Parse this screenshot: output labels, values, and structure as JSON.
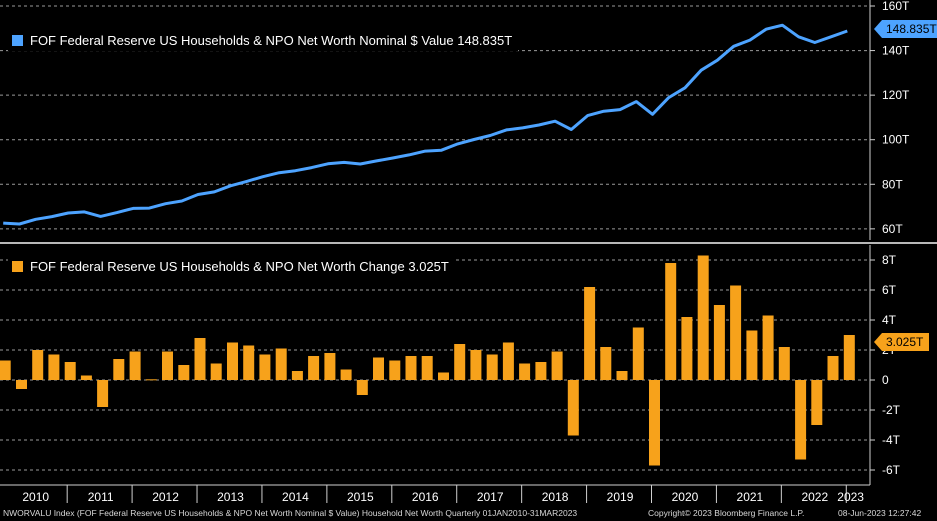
{
  "chart_data": [
    {
      "type": "line",
      "title": "FOF Federal Reserve US Households & NPO Net Worth Nominal $ Value",
      "last_value_label": "148.835T",
      "legend_text": "FOF Federal Reserve US Households & NPO Net Worth Nominal $ Value 148.835T",
      "color": "#4da3ff",
      "ylim": [
        55,
        160
      ],
      "yticks": [
        60,
        80,
        100,
        120,
        140,
        160
      ],
      "ytick_labels": [
        "60T",
        "80T",
        "100T",
        "120T",
        "140T",
        "160T"
      ],
      "x": [
        2010.0,
        2010.25,
        2010.5,
        2010.75,
        2011.0,
        2011.25,
        2011.5,
        2011.75,
        2012.0,
        2012.25,
        2012.5,
        2012.75,
        2013.0,
        2013.25,
        2013.5,
        2013.75,
        2014.0,
        2014.25,
        2014.5,
        2014.75,
        2015.0,
        2015.25,
        2015.5,
        2015.75,
        2016.0,
        2016.25,
        2016.5,
        2016.75,
        2017.0,
        2017.25,
        2017.5,
        2017.75,
        2018.0,
        2018.25,
        2018.5,
        2018.75,
        2019.0,
        2019.25,
        2019.5,
        2019.75,
        2020.0,
        2020.25,
        2020.5,
        2020.75,
        2021.0,
        2021.25,
        2021.5,
        2021.75,
        2022.0,
        2022.25,
        2022.5,
        2022.75,
        2023.0
      ],
      "values": [
        62.6,
        62.2,
        64.3,
        65.5,
        67.1,
        67.6,
        65.6,
        67.3,
        69.2,
        69.3,
        71.3,
        72.5,
        75.4,
        76.6,
        79.3,
        81.3,
        83.4,
        85.2,
        86.1,
        87.5,
        89.2,
        89.8,
        89.1,
        90.5,
        91.8,
        93.2,
        94.9,
        95.3,
        98.1,
        100.1,
        101.9,
        104.4,
        105.3,
        106.6,
        108.3,
        104.6,
        110.8,
        112.8,
        113.5,
        117.1,
        111.4,
        118.9,
        123.3,
        131.2,
        135.7,
        141.9,
        144.7,
        149.6,
        151.4,
        146.2,
        143.6,
        146.2,
        148.8
      ]
    },
    {
      "type": "bar",
      "title": "FOF Federal Reserve US Households & NPO Net Worth Change",
      "last_value_label": "3.025T",
      "legend_text": "FOF Federal Reserve US Households & NPO Net Worth Change 3.025T",
      "color": "#f7a21b",
      "ylim": [
        -7,
        9
      ],
      "yticks": [
        -6,
        -4,
        -2,
        0,
        2,
        4,
        6,
        8
      ],
      "ytick_labels": [
        "-6T",
        "-4T",
        "-2T",
        "0",
        "2T",
        "4T",
        "6T",
        "8T"
      ],
      "x": [
        2010.0,
        2010.25,
        2010.5,
        2010.75,
        2011.0,
        2011.25,
        2011.5,
        2011.75,
        2012.0,
        2012.25,
        2012.5,
        2012.75,
        2013.0,
        2013.25,
        2013.5,
        2013.75,
        2014.0,
        2014.25,
        2014.5,
        2014.75,
        2015.0,
        2015.25,
        2015.5,
        2015.75,
        2016.0,
        2016.25,
        2016.5,
        2016.75,
        2017.0,
        2017.25,
        2017.5,
        2017.75,
        2018.0,
        2018.25,
        2018.5,
        2018.75,
        2019.0,
        2019.25,
        2019.5,
        2019.75,
        2020.0,
        2020.25,
        2020.5,
        2020.75,
        2021.0,
        2021.25,
        2021.5,
        2021.75,
        2022.0,
        2022.25,
        2022.5,
        2022.75,
        2023.0
      ],
      "values": [
        1.3,
        -0.6,
        2.0,
        1.7,
        1.2,
        0.3,
        -1.8,
        1.4,
        1.9,
        0.05,
        1.9,
        1.0,
        2.8,
        1.1,
        2.5,
        2.3,
        1.7,
        2.1,
        0.6,
        1.6,
        1.8,
        0.7,
        -1.0,
        1.5,
        1.3,
        1.6,
        1.6,
        0.5,
        2.4,
        2.0,
        1.7,
        2.5,
        1.1,
        1.2,
        1.9,
        -3.7,
        6.2,
        2.2,
        0.6,
        3.5,
        -5.7,
        7.8,
        4.2,
        8.3,
        5.0,
        6.3,
        3.3,
        4.3,
        2.2,
        -5.3,
        -3.0,
        1.6,
        3.0
      ]
    }
  ],
  "xaxis": {
    "labels": [
      "2010",
      "2011",
      "2012",
      "2013",
      "2014",
      "2015",
      "2016",
      "2017",
      "2018",
      "2019",
      "2020",
      "2021",
      "2022",
      "2023"
    ]
  },
  "footer": {
    "left": "NWORVALU Index (FOF Federal Reserve US Households & NPO Net Worth Nominal $ Value) Household Net Worth  Quarterly 01JAN2010-31MAR2023",
    "copyright": "Copyright© 2023 Bloomberg Finance L.P.",
    "timestamp": "08-Jun-2023 12:27:42"
  }
}
